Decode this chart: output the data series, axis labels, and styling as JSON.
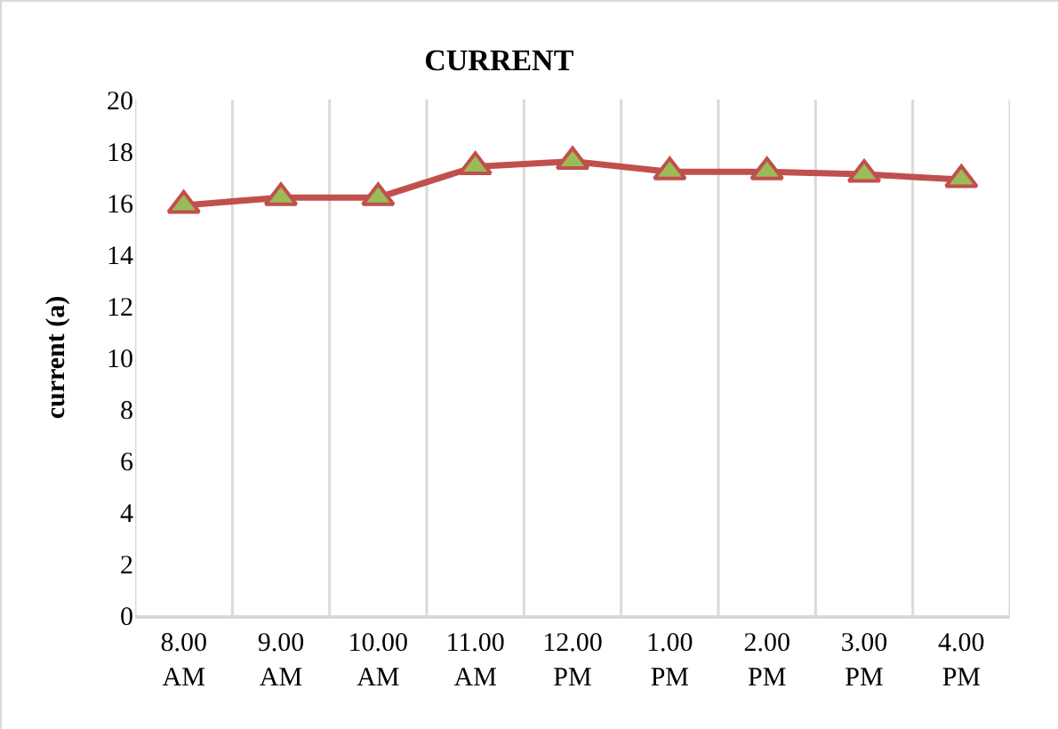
{
  "chart_data": {
    "type": "line",
    "title": "CURRENT",
    "ylabel": "current (a)",
    "categories": [
      "8.00 AM",
      "9.00 AM",
      "10.00 AM",
      "11.00 AM",
      "12.00 PM",
      "1.00 PM",
      "2.00 PM",
      "3.00 PM",
      "4.00 PM"
    ],
    "series": [
      {
        "color": "#c0504d",
        "values": [
          15.9,
          16.2,
          16.2,
          17.4,
          17.6,
          17.2,
          17.2,
          17.1,
          16.9
        ]
      }
    ],
    "ylim": [
      0,
      20
    ],
    "yticks": [
      0,
      2,
      4,
      6,
      8,
      10,
      12,
      14,
      16,
      18,
      20
    ],
    "grid": "x",
    "marker": "triangle",
    "line_style": "solid"
  }
}
